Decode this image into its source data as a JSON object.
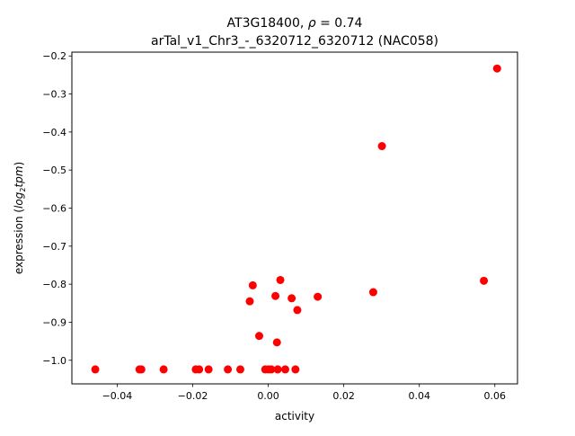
{
  "chart_data": {
    "type": "scatter",
    "title_line1_prefix": "AT3G18400, ",
    "title_line1_rho": "ρ",
    "title_line1_suffix": " = 0.74",
    "title_line2": "arTal_v1_Chr3_-_6320712_6320712 (NAC058)",
    "xlabel": "activity",
    "ylabel_prefix": "expression (",
    "ylabel_log": "log",
    "ylabel_sub": "2",
    "ylabel_tpm": "tpm",
    "ylabel_suffix": ")",
    "xlim": [
      -0.052,
      0.066
    ],
    "ylim": [
      -1.062,
      -0.19
    ],
    "xticks": [
      {
        "value": -0.04,
        "label": "−0.04"
      },
      {
        "value": -0.02,
        "label": "−0.02"
      },
      {
        "value": 0.0,
        "label": "0.00"
      },
      {
        "value": 0.02,
        "label": "0.02"
      },
      {
        "value": 0.04,
        "label": "0.04"
      },
      {
        "value": 0.06,
        "label": "0.06"
      }
    ],
    "yticks": [
      {
        "value": -1.0,
        "label": "−1.0"
      },
      {
        "value": -0.9,
        "label": "−0.9"
      },
      {
        "value": -0.8,
        "label": "−0.8"
      },
      {
        "value": -0.7,
        "label": "−0.7"
      },
      {
        "value": -0.6,
        "label": "−0.6"
      },
      {
        "value": -0.5,
        "label": "−0.5"
      },
      {
        "value": -0.4,
        "label": "−0.4"
      },
      {
        "value": -0.3,
        "label": "−0.3"
      },
      {
        "value": -0.2,
        "label": "−0.2"
      }
    ],
    "grid": false,
    "marker_color": "#ff0000",
    "series": [
      {
        "points": [
          {
            "x": -0.0458,
            "y": -1.024
          },
          {
            "x": -0.0341,
            "y": -1.024
          },
          {
            "x": -0.0336,
            "y": -1.024
          },
          {
            "x": -0.0277,
            "y": -1.024
          },
          {
            "x": -0.0192,
            "y": -1.024
          },
          {
            "x": -0.0183,
            "y": -1.024
          },
          {
            "x": -0.0158,
            "y": -1.024
          },
          {
            "x": -0.0107,
            "y": -1.024
          },
          {
            "x": -0.0074,
            "y": -1.024
          },
          {
            "x": -0.0049,
            "y": -0.845
          },
          {
            "x": -0.0041,
            "y": -0.803
          },
          {
            "x": -0.0024,
            "y": -0.936
          },
          {
            "x": -0.0008,
            "y": -1.024
          },
          {
            "x": 0.0001,
            "y": -1.024
          },
          {
            "x": 0.0008,
            "y": -1.024
          },
          {
            "x": 0.0019,
            "y": -0.831
          },
          {
            "x": 0.0023,
            "y": -0.953
          },
          {
            "x": 0.0025,
            "y": -1.024
          },
          {
            "x": 0.0032,
            "y": -0.789
          },
          {
            "x": 0.0045,
            "y": -1.024
          },
          {
            "x": 0.0062,
            "y": -0.837
          },
          {
            "x": 0.0072,
            "y": -1.024
          },
          {
            "x": 0.0077,
            "y": -0.868
          },
          {
            "x": 0.0131,
            "y": -0.833
          },
          {
            "x": 0.0278,
            "y": -0.821
          },
          {
            "x": 0.0301,
            "y": -0.437
          },
          {
            "x": 0.0571,
            "y": -0.791
          },
          {
            "x": 0.0606,
            "y": -0.233
          }
        ]
      }
    ]
  }
}
